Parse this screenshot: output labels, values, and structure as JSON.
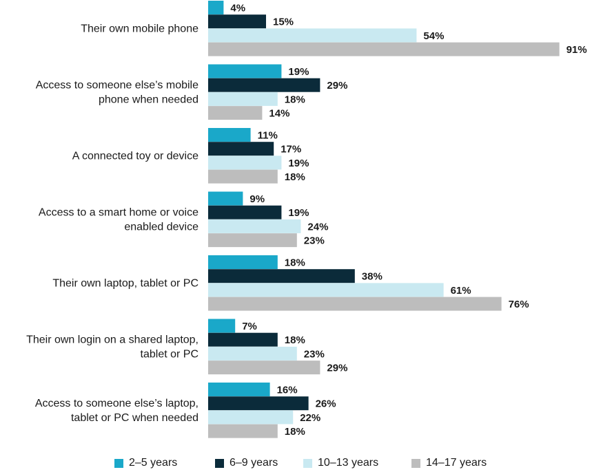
{
  "chart_data": {
    "type": "bar",
    "orientation": "horizontal",
    "categories": [
      [
        "Their own mobile phone"
      ],
      [
        "Access to someone else’s mobile",
        "phone when needed"
      ],
      [
        "A connected toy or device"
      ],
      [
        "Access to a smart home or voice",
        "enabled device"
      ],
      [
        "Their own laptop, tablet or PC"
      ],
      [
        "Their own login on a shared laptop,",
        "tablet or PC"
      ],
      [
        "Access to someone else’s laptop,",
        "tablet or PC when needed"
      ]
    ],
    "series": [
      {
        "name": "2–5 years",
        "color": "#1aa8c9",
        "values": [
          4,
          19,
          11,
          9,
          18,
          7,
          16
        ]
      },
      {
        "name": "6–9 years",
        "color": "#0b2b3a",
        "values": [
          15,
          29,
          17,
          19,
          38,
          18,
          26
        ]
      },
      {
        "name": "10–13 years",
        "color": "#c9e9f1",
        "values": [
          54,
          18,
          19,
          24,
          61,
          23,
          22
        ]
      },
      {
        "name": "14–17 years",
        "color": "#bdbdbd",
        "values": [
          91,
          14,
          18,
          23,
          76,
          29,
          18
        ]
      }
    ],
    "value_suffix": "%",
    "xlim": [
      0,
      100
    ],
    "grid": false,
    "legend_position": "bottom"
  }
}
